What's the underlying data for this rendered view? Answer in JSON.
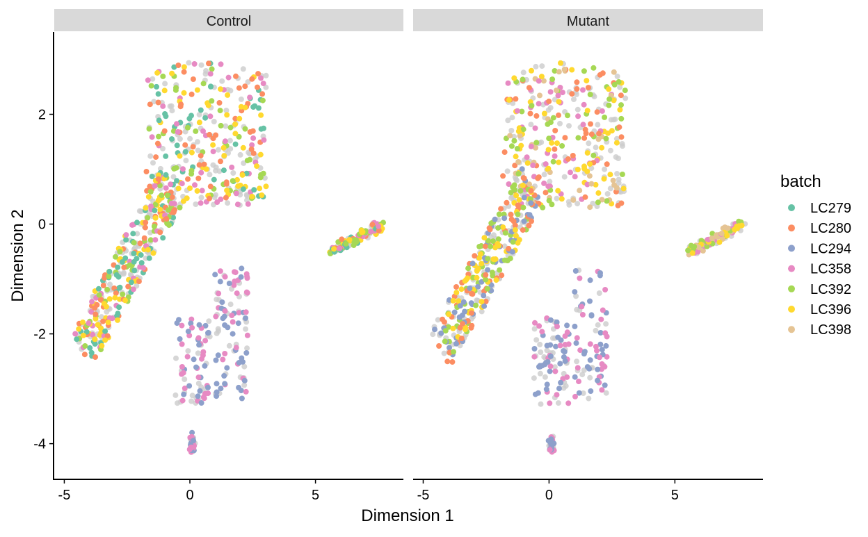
{
  "chart_data": {
    "type": "scatter",
    "xlabel": "Dimension 1",
    "ylabel": "Dimension 2",
    "xlim": [
      -5.4,
      8.5
    ],
    "ylim": [
      -4.65,
      3.5
    ],
    "x_ticks": [
      -5,
      0,
      5
    ],
    "y_ticks": [
      -4,
      -2,
      0,
      2
    ],
    "x_tick_labels": [
      "-5",
      "0",
      "5"
    ],
    "y_tick_labels": [
      "-4",
      "-2",
      "0",
      "2"
    ],
    "grid": false,
    "legend": {
      "title": "batch",
      "position": "right",
      "entries": [
        {
          "name": "LC279",
          "color": "#66c2a5"
        },
        {
          "name": "LC280",
          "color": "#fc8d62"
        },
        {
          "name": "LC294",
          "color": "#8da0cb"
        },
        {
          "name": "LC358",
          "color": "#e78ac3"
        },
        {
          "name": "LC392",
          "color": "#a6d854"
        },
        {
          "name": "LC396",
          "color": "#ffd92f"
        },
        {
          "name": "LC398",
          "color": "#e5c494"
        }
      ]
    },
    "background_color": "#cccccc",
    "panels": [
      {
        "title": "Control",
        "clusters": [
          {
            "region": "upper-left arm",
            "x": [
              -1.7,
              3.0
            ],
            "y": [
              0.3,
              3.1
            ],
            "batches": [
              "LC279",
              "LC280",
              "LC392",
              "LC396",
              "LC358"
            ]
          },
          {
            "region": "left diagonal arm",
            "x": [
              -4.5,
              -0.5
            ],
            "y": [
              -2.7,
              0.8
            ],
            "batches": [
              "LC279",
              "LC392",
              "LC396",
              "LC280",
              "LC358"
            ]
          },
          {
            "region": "lower tail",
            "x": [
              -1.5,
              2.3
            ],
            "y": [
              -4.3,
              -0.7
            ],
            "batches": [
              "LC294",
              "LC358"
            ]
          },
          {
            "region": "right island",
            "x": [
              5.5,
              7.8
            ],
            "y": [
              -0.6,
              0.1
            ],
            "batches": [
              "LC279",
              "LC280",
              "LC392",
              "LC396",
              "LC358"
            ]
          }
        ]
      },
      {
        "title": "Mutant",
        "clusters": [
          {
            "region": "upper-left arm",
            "x": [
              -1.7,
              3.0
            ],
            "y": [
              0.3,
              3.1
            ],
            "batches": [
              "LC280",
              "LC396",
              "LC398",
              "LC392",
              "LC358"
            ]
          },
          {
            "region": "left diagonal arm",
            "x": [
              -4.5,
              -0.5
            ],
            "y": [
              -2.7,
              0.8
            ],
            "batches": [
              "LC396",
              "LC392",
              "LC280",
              "LC294"
            ]
          },
          {
            "region": "lower tail",
            "x": [
              -1.5,
              2.3
            ],
            "y": [
              -4.3,
              -0.7
            ],
            "batches": [
              "LC294",
              "LC358"
            ]
          },
          {
            "region": "right island",
            "x": [
              5.5,
              7.8
            ],
            "y": [
              -0.6,
              0.1
            ],
            "batches": [
              "LC392",
              "LC396",
              "LC398",
              "LC358"
            ]
          }
        ]
      }
    ]
  }
}
